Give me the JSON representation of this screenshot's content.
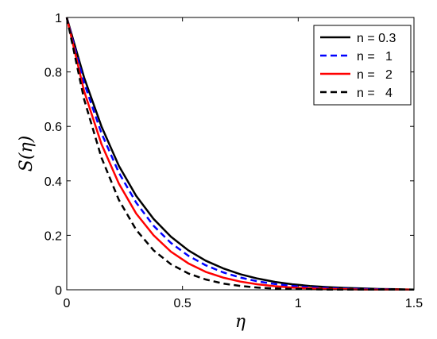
{
  "chart_data": {
    "type": "line",
    "xlabel": "η",
    "ylabel": "S(η)",
    "xlim": [
      0,
      1.5
    ],
    "ylim": [
      0,
      1
    ],
    "xticks": [
      0,
      0.5,
      1,
      1.5
    ],
    "xtick_labels": [
      "0",
      "0.5",
      "1",
      "1.5"
    ],
    "yticks": [
      0,
      0.2,
      0.4,
      0.6,
      0.8,
      1
    ],
    "ytick_labels": [
      "0",
      "0.2",
      "0.4",
      "0.6",
      "0.8",
      "1"
    ],
    "grid": false,
    "legend_position": "top-right",
    "series": [
      {
        "name": "n = 0.3",
        "color": "#000000",
        "dash": "solid",
        "x": [
          0,
          0.075,
          0.15,
          0.225,
          0.3,
          0.375,
          0.45,
          0.525,
          0.6,
          0.675,
          0.75,
          0.825,
          0.9,
          0.975,
          1.05,
          1.125,
          1.2,
          1.275,
          1.35,
          1.425,
          1.5
        ],
        "y": [
          1,
          0.78,
          0.6,
          0.455,
          0.345,
          0.26,
          0.195,
          0.145,
          0.107,
          0.079,
          0.057,
          0.041,
          0.029,
          0.02,
          0.014,
          0.01,
          0.007,
          0.005,
          0.003,
          0.002,
          0.001
        ]
      },
      {
        "name": "n =   1",
        "color": "#0000ff",
        "dash": "dashed",
        "x": [
          0,
          0.075,
          0.15,
          0.225,
          0.3,
          0.375,
          0.45,
          0.525,
          0.6,
          0.675,
          0.75,
          0.825,
          0.9,
          0.975,
          1.05,
          1.125,
          1.2,
          1.275,
          1.35,
          1.425,
          1.5
        ],
        "y": [
          1,
          0.76,
          0.575,
          0.43,
          0.32,
          0.235,
          0.172,
          0.125,
          0.09,
          0.064,
          0.045,
          0.031,
          0.021,
          0.014,
          0.009,
          0.006,
          0.004,
          0.003,
          0.002,
          0.001,
          0.001
        ]
      },
      {
        "name": "n =   2",
        "color": "#ff0000",
        "dash": "solid",
        "x": [
          0,
          0.075,
          0.15,
          0.225,
          0.3,
          0.375,
          0.45,
          0.525,
          0.6,
          0.675,
          0.75,
          0.825,
          0.9,
          0.975,
          1.05,
          1.125,
          1.2,
          1.275,
          1.35,
          1.425,
          1.5
        ],
        "y": [
          1,
          0.73,
          0.535,
          0.39,
          0.28,
          0.2,
          0.14,
          0.097,
          0.066,
          0.045,
          0.03,
          0.02,
          0.013,
          0.008,
          0.005,
          0.003,
          0.002,
          0.001,
          0.001,
          0.001,
          0.001
        ]
      },
      {
        "name": "n =   4",
        "color": "#000000",
        "dash": "dashed",
        "x": [
          0,
          0.075,
          0.15,
          0.225,
          0.3,
          0.375,
          0.45,
          0.525,
          0.6,
          0.675,
          0.75,
          0.825,
          0.9,
          0.975,
          1.05,
          1.125,
          1.2,
          1.275,
          1.35,
          1.425,
          1.5
        ],
        "y": [
          1,
          0.7,
          0.485,
          0.33,
          0.22,
          0.145,
          0.094,
          0.06,
          0.038,
          0.023,
          0.014,
          0.008,
          0.005,
          0.003,
          0.002,
          0.001,
          0.001,
          0.001,
          0.001,
          0.001,
          0.001
        ]
      }
    ]
  }
}
